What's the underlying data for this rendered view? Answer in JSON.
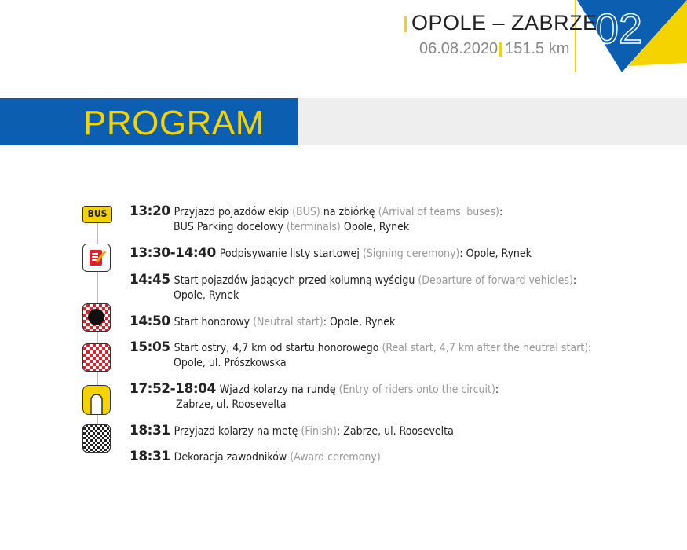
{
  "header": {
    "route": "OPOLE – ZABRZE",
    "date": "06.08.2020",
    "distance": "151.5 km",
    "stage_number": "02"
  },
  "section_title": "PROGRAM",
  "colors": {
    "blue": "#0c5fb0",
    "yellow": "#f5d300",
    "gray_band": "#eeeeee",
    "red": "#e2202b"
  },
  "schedule": [
    {
      "icon": "bus-icon",
      "time": "13:20",
      "pl": "Przyjazd pojazdów ekip",
      "en": "(BUS)",
      "pl2": "na zbiórkę",
      "en2": "(Arrival of teams' buses)",
      "tail": ":",
      "line2_pl": "BUS Parking docelowy",
      "line2_en": "(terminals)",
      "line2_tail": "Opole, Rynek",
      "bus_label": "BUS"
    },
    {
      "icon": "signing-sheet-icon",
      "time": "13:30-14:40",
      "pl": "Podpisywanie listy startowej",
      "en": "(Signing ceremony)",
      "tail": ": Opole, Rynek"
    },
    {
      "icon": "",
      "time": "14:45",
      "pl": "Start pojazdów jadących przed kolumną wyścigu",
      "en": "(Departure of forward vehicles)",
      "tail": ":",
      "line2_tail": "Opole, Rynek"
    },
    {
      "icon": "neutral-start-flag-icon",
      "time": "14:50",
      "pl": "Start honorowy",
      "en": "(Neutral start)",
      "tail": ": Opole, Rynek"
    },
    {
      "icon": "real-start-flag-icon",
      "time": "15:05",
      "pl": "Start ostry, 4,7 km od startu honorowego",
      "en": "(Real start, 4,7 km after the neutral start)",
      "tail": ":",
      "line2_tail": "Opole, ul. Prószkowska"
    },
    {
      "icon": "circuit-icon",
      "time": "17:52-18:04",
      "pl": "Wjazd kolarzy na rundę",
      "en": "(Entry of riders onto the circuit)",
      "tail": ":",
      "line2_tail": "Zabrze, ul. Roosevelta"
    },
    {
      "icon": "finish-flag-icon",
      "time": "18:31",
      "pl": "Przyjazd kolarzy na metę",
      "en": "(Finish)",
      "tail": ": Zabrze, ul. Roosevelta"
    },
    {
      "icon": "",
      "time": "18:31",
      "pl": "Dekoracja zawodników",
      "en": "(Award ceremony)",
      "tail": ""
    }
  ]
}
